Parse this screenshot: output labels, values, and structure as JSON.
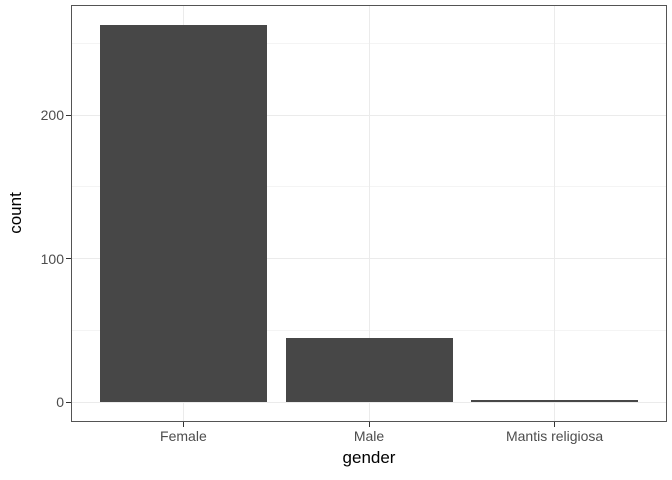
{
  "chart_data": {
    "type": "bar",
    "title": "",
    "categories": [
      "Female",
      "Male",
      "Mantis religiosa"
    ],
    "values": [
      263,
      45,
      2
    ],
    "xlabel": "gender",
    "ylabel": "count",
    "y_major_ticks": [
      0,
      100,
      200
    ],
    "y_minor_ticks": [
      50,
      150,
      250
    ],
    "ylim": [
      -13,
      276
    ],
    "grid": "major+minor horizontal, major vertical at category centers",
    "legend_position": "none",
    "theme": "ggplot2 theme_bw",
    "colors": {
      "bar_fill": "#474747",
      "panel_border": "#545454",
      "panel_background": "#ffffff",
      "grid_major": "#ebebeb",
      "grid_minor": "#f4f4f4",
      "tick_mark": "#333333",
      "tick_label": "#4d4d4d",
      "axis_title": "#000000"
    },
    "bar_width_fraction": 0.9
  }
}
